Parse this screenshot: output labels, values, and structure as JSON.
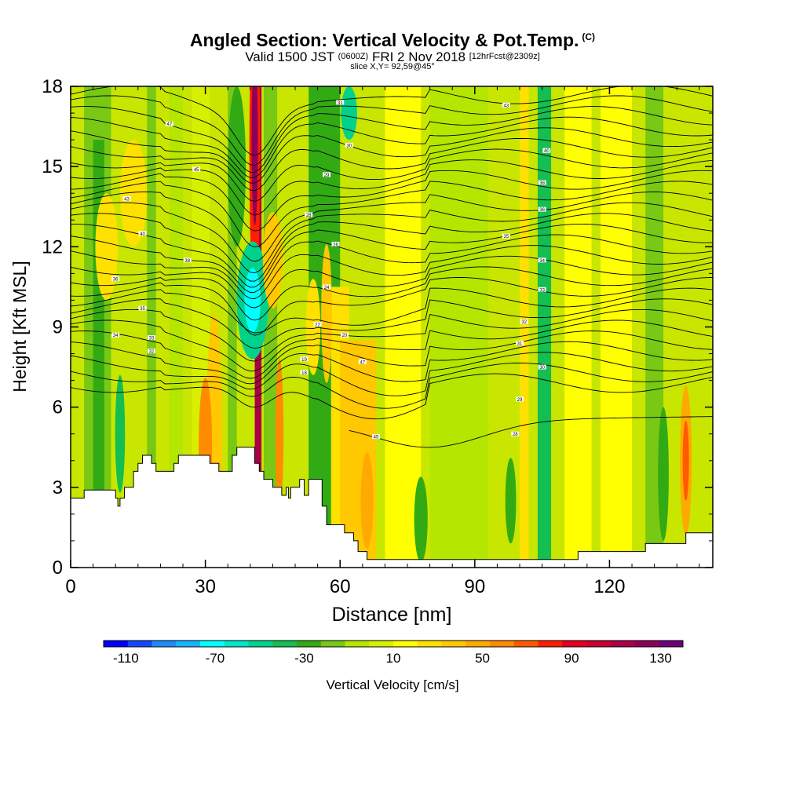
{
  "title": {
    "main": "Angled Section: Vertical Velocity & Pot.Temp.",
    "units_tag": "(C)",
    "valid_prefix": "Valid 1500 JST",
    "valid_zulu": "(0600Z)",
    "valid_date": "FRI 2 Nov 2018",
    "forecast_tag": "[12hrFcst@2309z]",
    "slice": "slice X,Y= 92,59@45°"
  },
  "chart_data": {
    "type": "heatmap",
    "xlabel": "Distance [nm]",
    "ylabel": "Height [Kft MSL]",
    "xlim": [
      0,
      143
    ],
    "ylim": [
      0,
      18
    ],
    "x_ticks": [
      "0",
      "30",
      "60",
      "90",
      "120"
    ],
    "y_ticks": [
      "0",
      "3",
      "6",
      "9",
      "12",
      "15",
      "18"
    ],
    "colorbar": {
      "label": "Vertical Velocity [cm/s]",
      "range": [
        -120,
        140
      ],
      "tick_labels": [
        "-110",
        "-70",
        "-30",
        "10",
        "50",
        "90",
        "130"
      ],
      "colors": [
        "#0000ff",
        "#1446ff",
        "#1e8cff",
        "#14b4ff",
        "#00ffff",
        "#00e6c8",
        "#00d28c",
        "#14be50",
        "#32aa14",
        "#78c814",
        "#b4e600",
        "#d7f000",
        "#ffff00",
        "#ffe100",
        "#ffc800",
        "#ffaa00",
        "#ff8c00",
        "#ff5a00",
        "#ff1e00",
        "#e6001e",
        "#c80032",
        "#aa0046",
        "#8c005a",
        "#6e0078"
      ]
    },
    "features": [
      {
        "name": "updraft",
        "x": 40,
        "y_range": [
          12.5,
          18
        ],
        "max_cms": 130
      },
      {
        "name": "downdraft",
        "x": 40,
        "y_range": [
          8.5,
          11.5
        ],
        "min_cms": -70
      },
      {
        "name": "terrain",
        "max_height_kft": 4.5
      },
      {
        "name": "isentrope_label_values",
        "values": [
          "47",
          "45",
          "43",
          "40",
          "38",
          "36",
          "35",
          "34",
          "33",
          "32",
          "31",
          "30",
          "29",
          "28",
          "26",
          "24",
          "22",
          "20",
          "19",
          "18"
        ]
      }
    ]
  }
}
